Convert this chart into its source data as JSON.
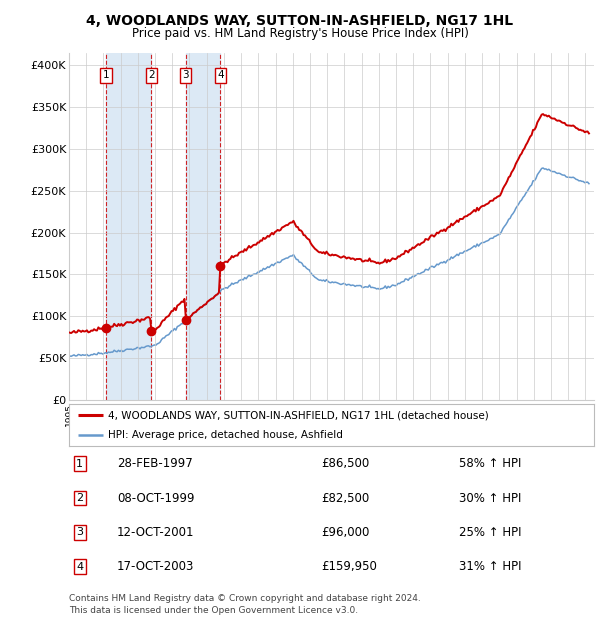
{
  "title": "4, WOODLANDS WAY, SUTTON-IN-ASHFIELD, NG17 1HL",
  "subtitle": "Price paid vs. HM Land Registry's House Price Index (HPI)",
  "transactions": [
    {
      "num": 1,
      "date": "28-FEB-1997",
      "date_val": 1997.15,
      "price": 86500,
      "pct": "58%",
      "dir": "↑"
    },
    {
      "num": 2,
      "date": "08-OCT-1999",
      "date_val": 1999.77,
      "price": 82500,
      "pct": "30%",
      "dir": "↑"
    },
    {
      "num": 3,
      "date": "12-OCT-2001",
      "date_val": 2001.78,
      "price": 96000,
      "pct": "25%",
      "dir": "↑"
    },
    {
      "num": 4,
      "date": "17-OCT-2003",
      "date_val": 2003.79,
      "price": 159950,
      "pct": "31%",
      "dir": "↑"
    }
  ],
  "ylabel_ticks": [
    "£0",
    "£50K",
    "£100K",
    "£150K",
    "£200K",
    "£250K",
    "£300K",
    "£350K",
    "£400K"
  ],
  "ytick_vals": [
    0,
    50000,
    100000,
    150000,
    200000,
    250000,
    300000,
    350000,
    400000
  ],
  "ylim": [
    0,
    415000
  ],
  "xlim_start": 1995.0,
  "xlim_end": 2025.5,
  "legend_line1": "4, WOODLANDS WAY, SUTTON-IN-ASHFIELD, NG17 1HL (detached house)",
  "legend_line2": "HPI: Average price, detached house, Ashfield",
  "footer": "Contains HM Land Registry data © Crown copyright and database right 2024.\nThis data is licensed under the Open Government Licence v3.0.",
  "property_color": "#cc0000",
  "hpi_color": "#6699cc",
  "shade_color": "#dce9f5",
  "dashed_color": "#cc0000",
  "background_color": "#ffffff",
  "grid_color": "#cccccc"
}
